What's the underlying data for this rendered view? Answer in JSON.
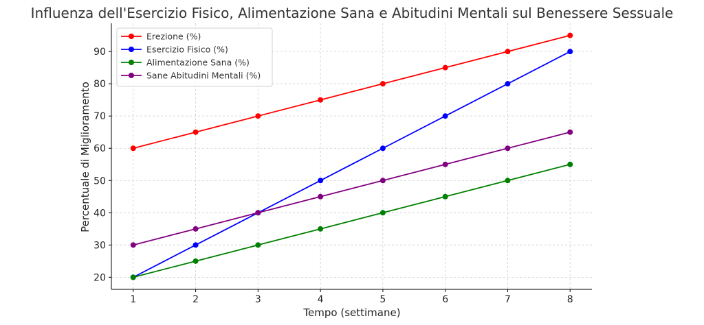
{
  "chart_data": {
    "type": "line",
    "title": "Influenza dell'Esercizio Fisico, Alimentazione Sana e Abitudini Mentali sul Benessere Sessuale",
    "xlabel": "Tempo (settimane)",
    "ylabel": "Percentuale di Miglioramento",
    "x": [
      1,
      2,
      3,
      4,
      5,
      6,
      7,
      8
    ],
    "xticks": [
      "1",
      "2",
      "3",
      "4",
      "5",
      "6",
      "7",
      "8"
    ],
    "yticks": [
      20,
      30,
      40,
      50,
      60,
      70,
      80,
      90
    ],
    "xlim": [
      0.65,
      8.35
    ],
    "ylim": [
      16.25,
      98.75
    ],
    "grid": true,
    "legend_position": "top-left",
    "series": [
      {
        "name": "Erezione (%)",
        "color": "#ff0000",
        "values": [
          60,
          65,
          70,
          75,
          80,
          85,
          90,
          95
        ]
      },
      {
        "name": "Esercizio Fisico (%)",
        "color": "#0000ff",
        "values": [
          20,
          30,
          40,
          50,
          60,
          70,
          80,
          90
        ]
      },
      {
        "name": "Alimentazione Sana (%)",
        "color": "#008000",
        "values": [
          20,
          25,
          30,
          35,
          40,
          45,
          50,
          55
        ]
      },
      {
        "name": "Sane Abitudini Mentali (%)",
        "color": "#800080",
        "values": [
          30,
          35,
          40,
          45,
          50,
          55,
          60,
          65
        ]
      }
    ]
  }
}
